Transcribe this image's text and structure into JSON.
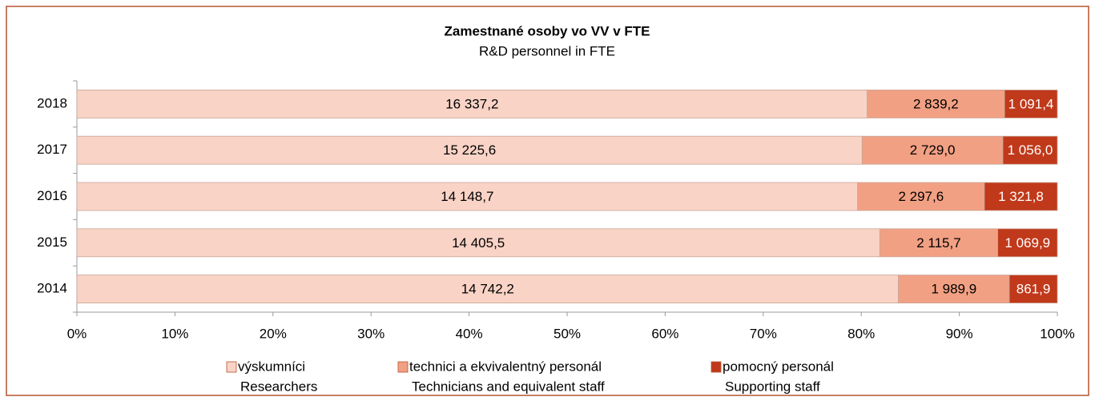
{
  "chart_data": {
    "type": "stacked-bar-100",
    "orientation": "horizontal",
    "title": "Zamestnané osoby vo VV v FTE",
    "subtitle": "R&D personnel in FTE",
    "categories": [
      "2018",
      "2017",
      "2016",
      "2015",
      "2014"
    ],
    "series": [
      {
        "name": "výskumníci",
        "name_en": "Researchers",
        "color": "#f9d3c6",
        "values": [
          16337.2,
          15225.6,
          14148.7,
          14405.5,
          14742.2
        ],
        "value_labels": [
          "16 337,2",
          "15 225,6",
          "14 148,7",
          "14 405,5",
          "14 742,2"
        ]
      },
      {
        "name": "technici a ekvivalentný personál",
        "name_en": "Technicians and equivalent staff",
        "color": "#f2a083",
        "values": [
          2839.2,
          2729.0,
          2297.6,
          2115.7,
          1989.9
        ],
        "value_labels": [
          "2 839,2",
          "2 729,0",
          "2 297,6",
          "2 115,7",
          "1 989,9"
        ]
      },
      {
        "name": "pomocný personál",
        "name_en": "Supporting staff",
        "color": "#c0391a",
        "values": [
          1091.4,
          1056.0,
          1321.8,
          1069.9,
          861.9
        ],
        "value_labels": [
          "1 091,4",
          "1 056,0",
          "1 321,8",
          "1 069,9",
          "861,9"
        ]
      }
    ],
    "xlim": [
      0,
      100
    ],
    "xticks": [
      {
        "value": 0,
        "label": "0%"
      },
      {
        "value": 10,
        "label": "10%"
      },
      {
        "value": 20,
        "label": "20%"
      },
      {
        "value": 30,
        "label": "30%"
      },
      {
        "value": 40,
        "label": "40%"
      },
      {
        "value": 50,
        "label": "50%"
      },
      {
        "value": 60,
        "label": "60%"
      },
      {
        "value": 70,
        "label": "70%"
      },
      {
        "value": 80,
        "label": "80%"
      },
      {
        "value": 90,
        "label": "90%"
      },
      {
        "value": 100,
        "label": "100%"
      }
    ],
    "legend": "bottom"
  }
}
